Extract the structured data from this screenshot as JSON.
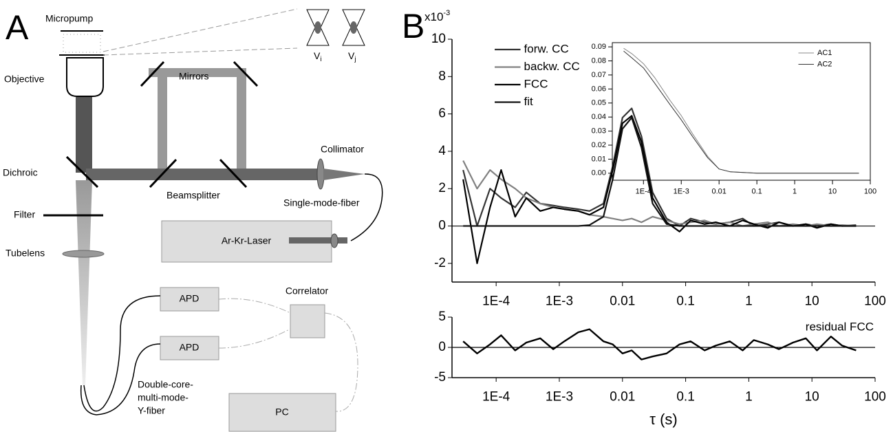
{
  "diagram": {
    "panels": [
      "A",
      "B"
    ],
    "labels": {
      "micropump": "Micropump",
      "objective": "Objective",
      "mirrors": "Mirrors",
      "collimator": "Collimator",
      "dichroic": "Dichroic",
      "beamsplitter": "Beamsplitter",
      "single_mode_fiber": "Single-mode-fiber",
      "filter": "Filter",
      "laser": "Ar-Kr-Laser",
      "tubelens": "Tubelens",
      "apd_1": "APD",
      "apd_2": "APD",
      "correlator": "Correlator",
      "pc": "PC",
      "y_fiber": [
        "Double-core-",
        "multi-mode-",
        "Y-fiber"
      ],
      "vi": {
        "text": "V",
        "sub": "i"
      },
      "vj": {
        "text": "V",
        "sub": "j"
      }
    }
  },
  "chart_data": [
    {
      "type": "line",
      "x_scale": "log",
      "y_multiplier": "x10",
      "y_multiplier_exp": "-3",
      "legend": "top-center",
      "x": [
        3e-05,
        5e-05,
        8e-05,
        0.00012,
        0.0002,
        0.0003,
        0.0005,
        0.0008,
        0.0012,
        0.002,
        0.003,
        0.005,
        0.007,
        0.01,
        0.014,
        0.02,
        0.03,
        0.05,
        0.08,
        0.12,
        0.2,
        0.3,
        0.5,
        0.8,
        1.2,
        2,
        3,
        5,
        8,
        12,
        20,
        30,
        50
      ],
      "series": [
        {
          "name": "forw. CC",
          "color": "#333333",
          "values": [
            3,
            0,
            2,
            1.5,
            1,
            1.8,
            1.2,
            1.1,
            1,
            0.9,
            0.8,
            1.2,
            3.2,
            5.8,
            6.3,
            4.8,
            1.8,
            0.4,
            0,
            0.4,
            0.2,
            0.1,
            0.2,
            0.4,
            0,
            0.1,
            0.2,
            0,
            0.1,
            0,
            0.1,
            0,
            0.05
          ]
        },
        {
          "name": "backw. CC",
          "color": "#808080",
          "values": [
            3.5,
            2,
            3,
            2.5,
            2,
            1.5,
            1.2,
            1,
            0.9,
            0.8,
            0.6,
            0.5,
            0.4,
            0.3,
            0.4,
            0.2,
            0.5,
            0.3,
            0.1,
            0.2,
            0.3,
            0.1,
            0.2,
            0,
            0.1,
            0.2,
            0,
            0.1,
            0,
            0.1,
            0,
            0.05,
            0
          ]
        },
        {
          "name": "FCC",
          "color": "#000000",
          "values": [
            2.5,
            -2,
            1,
            3,
            0.5,
            1.5,
            0.8,
            1,
            0.9,
            0.8,
            0.6,
            1,
            3,
            5.5,
            5.9,
            4.5,
            1.5,
            0.2,
            -0.3,
            0.3,
            0.1,
            0.2,
            0,
            0.3,
            0.1,
            -0.1,
            0.2,
            0,
            0.1,
            -0.1,
            0.1,
            0,
            0
          ]
        },
        {
          "name": "fit",
          "color": "#111111",
          "values": [
            0,
            0,
            0,
            0,
            0,
            0,
            0,
            0,
            0,
            0,
            0.05,
            0.5,
            2.5,
            5.2,
            5.8,
            4.2,
            1.2,
            0.1,
            0,
            0,
            0,
            0,
            0,
            0,
            0,
            0,
            0,
            0,
            0,
            0,
            0,
            0,
            0
          ]
        }
      ],
      "xlim": [
        2e-05,
        100
      ],
      "xticks": [
        {
          "value": 0.0001,
          "label": "1E-4"
        },
        {
          "value": 0.001,
          "label": "1E-3"
        },
        0.01,
        0.1,
        1,
        10,
        100
      ],
      "ylim": [
        -3,
        10
      ],
      "yticks": [
        -2,
        0,
        2,
        4,
        6,
        8,
        10
      ]
    },
    {
      "type": "line",
      "x_scale": "log",
      "legend": "top-right",
      "xlabel": "τ (s)",
      "x": [
        3e-05,
        5e-05,
        8e-05,
        0.00012,
        0.0002,
        0.0003,
        0.0005,
        0.0008,
        0.0012,
        0.002,
        0.003,
        0.005,
        0.007,
        0.01,
        0.014,
        0.02,
        0.03,
        0.05,
        0.08,
        0.12,
        0.2,
        0.3,
        0.5,
        0.8,
        1.2,
        2,
        3,
        5,
        8,
        12,
        20,
        30,
        50
      ],
      "series": [
        {
          "name": "residual FCC",
          "color": "#000000",
          "values": [
            1,
            -1,
            0.5,
            2,
            -0.5,
            0.8,
            1.5,
            -0.3,
            1,
            2.5,
            3,
            1,
            0.5,
            -1,
            -0.5,
            -2,
            -1.5,
            -1,
            0.5,
            1,
            -0.5,
            0.3,
            1,
            -0.5,
            1.2,
            0.5,
            -0.3,
            0.8,
            1.5,
            -0.5,
            1.8,
            0.3,
            -0.5
          ]
        }
      ],
      "xlim": [
        2e-05,
        100
      ],
      "xticks": [
        {
          "value": 0.0001,
          "label": "1E-4"
        },
        {
          "value": 0.001,
          "label": "1E-3"
        },
        0.01,
        0.1,
        1,
        10,
        100
      ],
      "ylim": [
        -5,
        5
      ],
      "yticks": [
        -5,
        0,
        5
      ]
    },
    {
      "type": "line",
      "x_scale": "log",
      "legend": "top-right",
      "x": [
        3e-05,
        5e-05,
        0.0001,
        0.0002,
        0.0005,
        0.001,
        0.002,
        0.005,
        0.01,
        0.02,
        0.1,
        1,
        10,
        50
      ],
      "series": [
        {
          "name": "AC1",
          "color": "#888888",
          "values": [
            0.089,
            0.085,
            0.078,
            0.068,
            0.052,
            0.041,
            0.028,
            0.012,
            0.003,
            0.001,
            0,
            0,
            0,
            0
          ]
        },
        {
          "name": "AC2",
          "color": "#333333",
          "values": [
            0.087,
            0.082,
            0.075,
            0.064,
            0.049,
            0.038,
            0.026,
            0.011,
            0.003,
            0.001,
            0,
            0,
            0,
            0
          ]
        }
      ],
      "xlim": [
        1.5e-05,
        100
      ],
      "xticks": [
        {
          "value": 0.0001,
          "label": "1E-4"
        },
        {
          "value": 0.001,
          "label": "1E-3"
        },
        0.01,
        0.1,
        1,
        10,
        100
      ],
      "ylim": [
        -0.005,
        0.093
      ],
      "yticks": [
        {
          "value": 0,
          "label": "0.00"
        },
        {
          "value": 0.01,
          "label": "0.01"
        },
        {
          "value": 0.02,
          "label": "0.02"
        },
        {
          "value": 0.03,
          "label": "0.03"
        },
        {
          "value": 0.04,
          "label": "0.04"
        },
        {
          "value": 0.05,
          "label": "0.05"
        },
        {
          "value": 0.06,
          "label": "0.06"
        },
        {
          "value": 0.07,
          "label": "0.07"
        },
        {
          "value": 0.08,
          "label": "0.08"
        },
        {
          "value": 0.09,
          "label": "0.09"
        }
      ]
    }
  ]
}
